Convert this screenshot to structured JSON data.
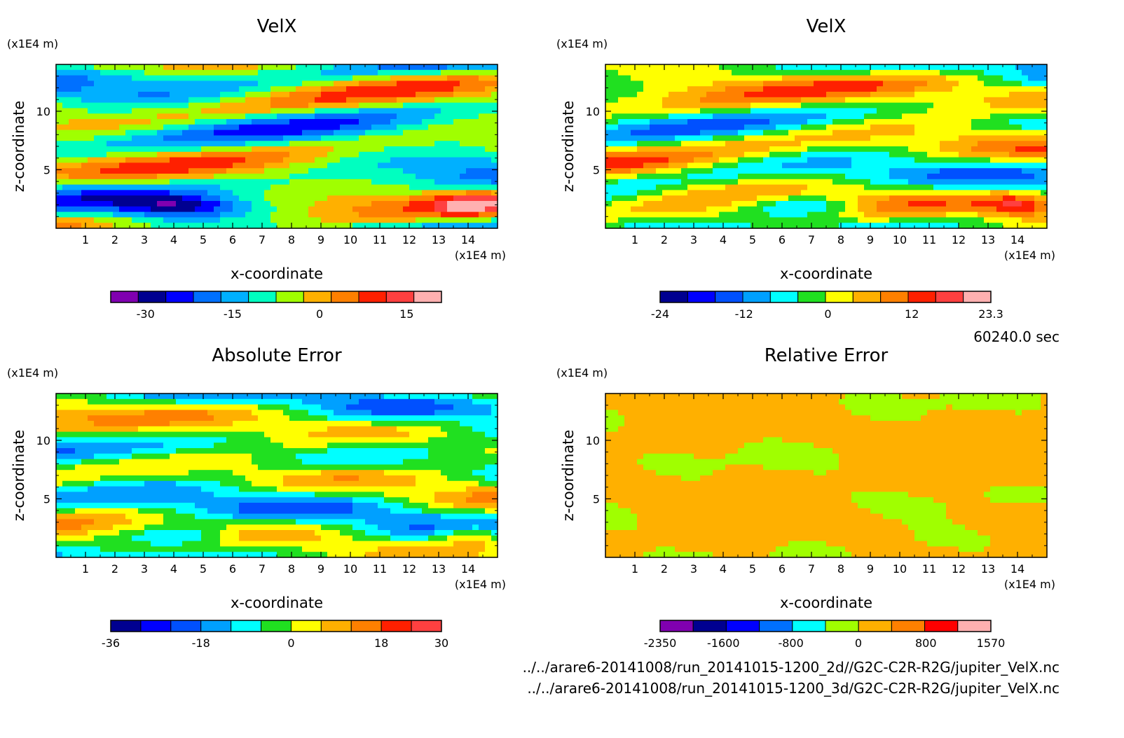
{
  "time_label": "60240.0 sec",
  "files": [
    "../../arare6-20141008/run_20141015-1200_2d//G2C-C2R-R2G/jupiter_VelX.nc",
    "../../arare6-20141008/run_20141015-1200_3d/G2C-C2R-R2G/jupiter_VelX.nc"
  ],
  "chart_data": [
    {
      "type": "heatmap",
      "title": "VelX",
      "xlabel": "x-coordinate",
      "ylabel": "z-coordinate",
      "x_unit": "(x1E4 m)",
      "y_unit": "(x1E4 m)",
      "xlim": [
        0,
        15
      ],
      "ylim": [
        0,
        14
      ],
      "x_ticks": [
        1,
        2,
        3,
        4,
        5,
        6,
        7,
        8,
        9,
        10,
        11,
        12,
        13,
        14
      ],
      "y_ticks": [
        5,
        10
      ],
      "colorbar": {
        "min": -36,
        "max": 21,
        "tick_values": [
          -30,
          -15,
          0,
          15
        ],
        "tick_labels": [
          "-30",
          "-15",
          "0",
          "15"
        ],
        "colors": [
          "#8000b0",
          "#000090",
          "#0000ff",
          "#0070ff",
          "#00b0ff",
          "#00ffc0",
          "#a0ff00",
          "#ffb000",
          "#ff8000",
          "#ff2000",
          "#ff4040",
          "#ffb0b0"
        ]
      }
    },
    {
      "type": "heatmap",
      "title": "VelX",
      "xlabel": "x-coordinate",
      "ylabel": "z-coordinate",
      "x_unit": "(x1E4 m)",
      "y_unit": "(x1E4 m)",
      "xlim": [
        0,
        15
      ],
      "ylim": [
        0,
        14
      ],
      "x_ticks": [
        1,
        2,
        3,
        4,
        5,
        6,
        7,
        8,
        9,
        10,
        11,
        12,
        13,
        14
      ],
      "y_ticks": [
        5,
        10
      ],
      "colorbar": {
        "min": -24,
        "max": 23.3,
        "tick_values": [
          -24,
          -12,
          0,
          12,
          23.3
        ],
        "tick_labels": [
          "-24",
          "-12",
          "0",
          "12",
          "23.3"
        ],
        "colors": [
          "#000090",
          "#0000ff",
          "#0050ff",
          "#00a0ff",
          "#00ffff",
          "#20e020",
          "#ffff00",
          "#ffb000",
          "#ff8000",
          "#ff2000",
          "#ff4040",
          "#ffb0b0"
        ]
      }
    },
    {
      "type": "heatmap",
      "title": "Absolute Error",
      "xlabel": "x-coordinate",
      "ylabel": "z-coordinate",
      "x_unit": "(x1E4 m)",
      "y_unit": "(x1E4 m)",
      "xlim": [
        0,
        15
      ],
      "ylim": [
        0,
        14
      ],
      "x_ticks": [
        1,
        2,
        3,
        4,
        5,
        6,
        7,
        8,
        9,
        10,
        11,
        12,
        13,
        14
      ],
      "y_ticks": [
        5,
        10
      ],
      "colorbar": {
        "min": -36,
        "max": 30,
        "tick_values": [
          -36,
          -18,
          0,
          18,
          30
        ],
        "tick_labels": [
          "-36",
          "-18",
          "0",
          "18",
          "30"
        ],
        "colors": [
          "#000090",
          "#0000ff",
          "#0050ff",
          "#00a0ff",
          "#00ffff",
          "#20e020",
          "#ffff00",
          "#ffb000",
          "#ff8000",
          "#ff2000",
          "#ff4040"
        ]
      }
    },
    {
      "type": "heatmap",
      "title": "Relative Error",
      "xlabel": "x-coordinate",
      "ylabel": "z-coordinate",
      "x_unit": "(x1E4 m)",
      "y_unit": "(x1E4 m)",
      "xlim": [
        0,
        15
      ],
      "ylim": [
        0,
        14
      ],
      "x_ticks": [
        1,
        2,
        3,
        4,
        5,
        6,
        7,
        8,
        9,
        10,
        11,
        12,
        13,
        14
      ],
      "y_ticks": [
        5,
        10
      ],
      "colorbar": {
        "min": -2350,
        "max": 1570,
        "tick_values": [
          -2350,
          -1600,
          -800,
          0,
          800,
          1570
        ],
        "tick_labels": [
          "-2350",
          "-1600",
          "-800",
          "0",
          "800",
          "1570"
        ],
        "colors": [
          "#8000b0",
          "#000090",
          "#0000ff",
          "#0070ff",
          "#00ffff",
          "#a0ff00",
          "#ffb000",
          "#ff8000",
          "#ff0000",
          "#ffb0b0"
        ]
      }
    }
  ]
}
